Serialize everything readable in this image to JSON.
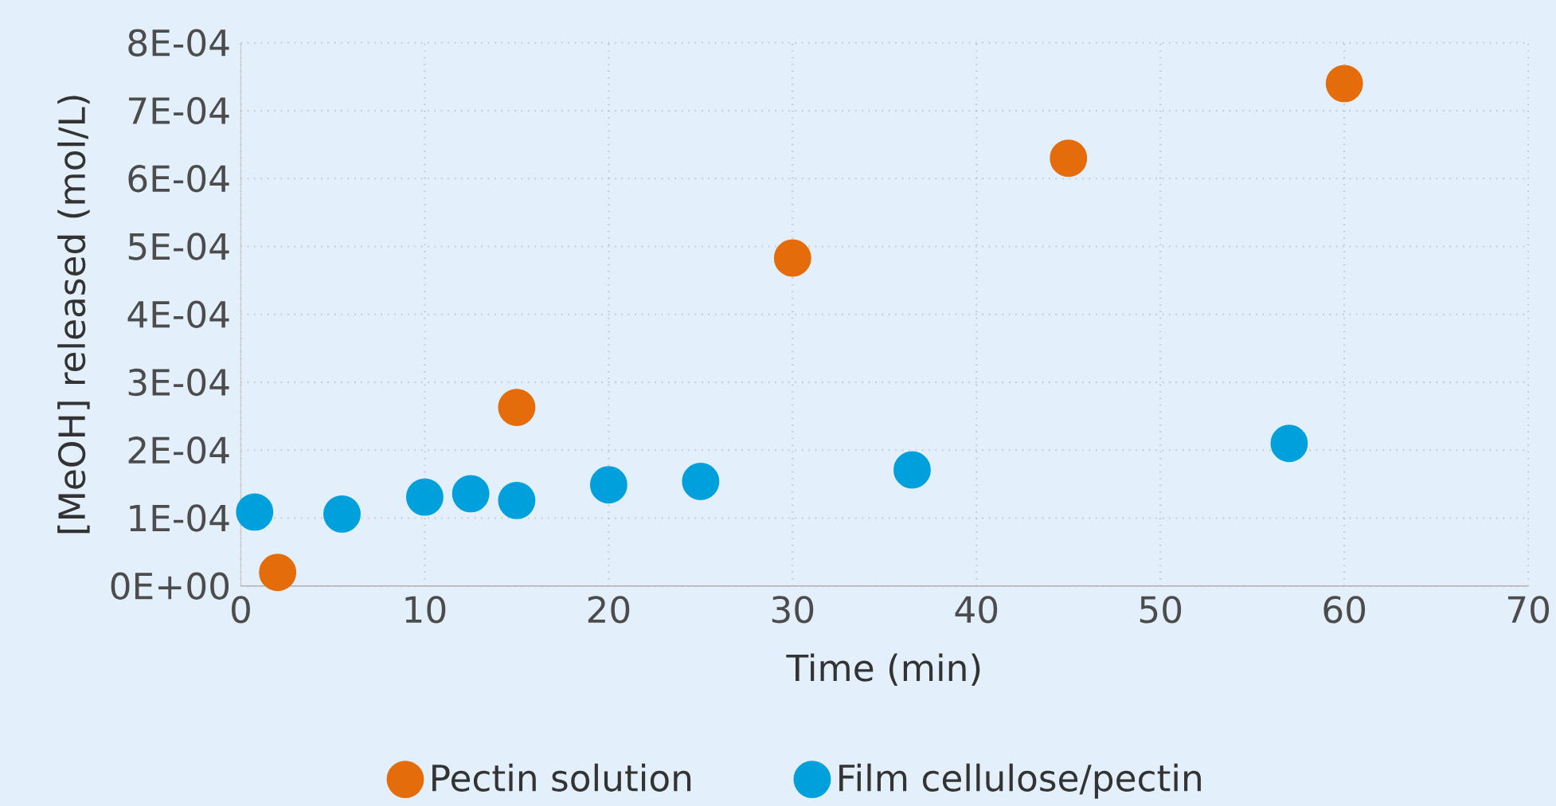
{
  "chart_data": {
    "type": "scatter",
    "xlabel": "Time (min)",
    "ylabel": "[MeOH] released (mol/L)",
    "xlim": [
      0,
      70
    ],
    "xticks": [
      0,
      10,
      20,
      30,
      40,
      50,
      60,
      70
    ],
    "ylim": [
      0,
      0.0008
    ],
    "yticks": [
      {
        "value": 0,
        "label": "0E+00"
      },
      {
        "value": 0.0001,
        "label": "1E-04"
      },
      {
        "value": 0.0002,
        "label": "2E-04"
      },
      {
        "value": 0.0003,
        "label": "3E-04"
      },
      {
        "value": 0.0004,
        "label": "4E-04"
      },
      {
        "value": 0.0005,
        "label": "5E-04"
      },
      {
        "value": 0.0006,
        "label": "6E-04"
      },
      {
        "value": 0.0007,
        "label": "7E-04"
      },
      {
        "value": 0.0008,
        "label": "8E-04"
      }
    ],
    "grid": true,
    "legend": "bottom",
    "marker": "circle",
    "series": [
      {
        "name": "Pectin solution",
        "color": "#e46c0a",
        "x": [
          2,
          15,
          30,
          45,
          60
        ],
        "values": [
          2e-05,
          0.000263,
          0.000483,
          0.00063,
          0.00074
        ]
      },
      {
        "name": "Film cellulose/pectin",
        "color": "#00a0dc",
        "x": [
          0.75,
          5.5,
          10,
          12.5,
          15,
          20,
          25,
          36.5,
          57
        ],
        "values": [
          0.000109,
          0.000106,
          0.000131,
          0.000136,
          0.000126,
          0.000149,
          0.000154,
          0.000171,
          0.00021
        ]
      }
    ]
  }
}
